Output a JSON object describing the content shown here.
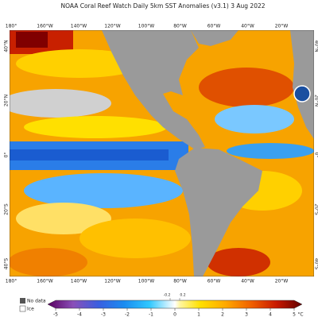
{
  "header": {
    "title": "NOAA Coral Reef Watch Daily 5km SST Anomalies  (v3.1)   3 Aug 2022"
  },
  "map": {
    "lon_labels": [
      "180°",
      "160°W",
      "140°W",
      "120°W",
      "100°W",
      "80°W",
      "60°W",
      "40°W",
      "20°W"
    ],
    "lat_labels": [
      "40°N",
      "20°N",
      "0°",
      "20°S",
      "40°S"
    ]
  },
  "legend": {
    "no_data": "No data",
    "ice": "Ice"
  },
  "colorbar": {
    "range": [
      -5,
      5
    ],
    "ticks": [
      -5,
      -4,
      -3,
      -2,
      -1,
      0,
      1,
      2,
      3,
      4,
      5
    ],
    "minor_ticks": [
      -0.2,
      0.2
    ],
    "unit": "°C"
  }
}
